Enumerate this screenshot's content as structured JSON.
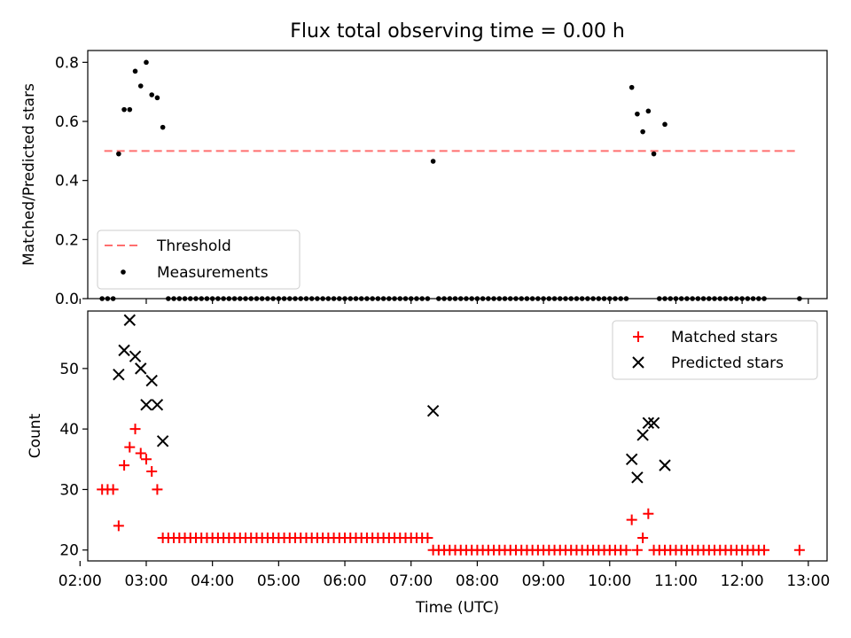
{
  "chart_data": [
    {
      "type": "scatter",
      "title": "Flux total observing time = 0.00 h",
      "ylabel": "Matched/Predicted stars",
      "xlabel": "",
      "ylim": [
        0,
        0.84
      ],
      "yticks": [
        "0.0",
        "0.2",
        "0.4",
        "0.6",
        "0.8"
      ],
      "threshold": {
        "name": "Threshold",
        "value": 0.5,
        "x_range": [
          "02:22",
          "12:48"
        ],
        "color": "#ff6f6f"
      },
      "legend": {
        "placement": "lower-left",
        "entries": [
          "Threshold",
          "Measurements"
        ]
      },
      "series": [
        {
          "name": "Measurements",
          "color": "#000000",
          "marker": "dot",
          "points": [
            [
              "02:20",
              0
            ],
            [
              "02:25",
              0
            ],
            [
              "02:30",
              0
            ],
            [
              "02:35",
              0.49
            ],
            [
              "02:40",
              0.64
            ],
            [
              "02:45",
              0.64
            ],
            [
              "02:50",
              0.77
            ],
            [
              "02:55",
              0.72
            ],
            [
              "03:00",
              0.8
            ],
            [
              "03:05",
              0.69
            ],
            [
              "03:10",
              0.68
            ],
            [
              "03:15",
              0.58
            ],
            [
              "07:20",
              0.465
            ],
            [
              "10:20",
              0.715
            ],
            [
              "10:25",
              0.625
            ],
            [
              "10:30",
              0.565
            ],
            [
              "10:35",
              0.635
            ],
            [
              "10:40",
              0.49
            ],
            [
              "10:50",
              0.59
            ],
            [
              "12:52",
              0
            ]
          ],
          "zero_runs": [
            {
              "start": "03:20",
              "end": "07:15",
              "step_min": 5
            },
            {
              "start": "07:25",
              "end": "10:15",
              "step_min": 5
            },
            {
              "start": "10:45",
              "end": "12:20",
              "step_min": 5
            }
          ]
        }
      ]
    },
    {
      "type": "scatter",
      "title": "",
      "ylabel": "Count",
      "xlabel": "Time (UTC)",
      "ylim": [
        18.2,
        59.5
      ],
      "yticks": [
        "20",
        "30",
        "40",
        "50"
      ],
      "xlim": [
        "02:07",
        "13:17"
      ],
      "xticks": [
        "02:00",
        "03:00",
        "04:00",
        "05:00",
        "06:00",
        "07:00",
        "08:00",
        "09:00",
        "10:00",
        "11:00",
        "12:00",
        "13:00"
      ],
      "legend": {
        "placement": "top-right",
        "entries": [
          "Matched stars",
          "Predicted stars"
        ]
      },
      "series": [
        {
          "name": "Matched stars",
          "color": "#ff0000",
          "marker": "plus",
          "points": [
            [
              "02:20",
              30
            ],
            [
              "02:25",
              30
            ],
            [
              "02:30",
              30
            ],
            [
              "02:35",
              24
            ],
            [
              "02:40",
              34
            ],
            [
              "02:45",
              37
            ],
            [
              "02:50",
              40
            ],
            [
              "02:55",
              36
            ],
            [
              "03:00",
              35
            ],
            [
              "03:05",
              33
            ],
            [
              "03:10",
              30
            ],
            [
              "10:20",
              25
            ],
            [
              "10:25",
              20
            ],
            [
              "10:30",
              22
            ],
            [
              "10:35",
              26
            ],
            [
              "10:40",
              20
            ],
            [
              "12:52",
              20
            ]
          ],
          "constant_runs": [
            {
              "start": "03:15",
              "end": "07:15",
              "step_min": 5,
              "value": 22
            },
            {
              "start": "07:20",
              "end": "10:15",
              "step_min": 5,
              "value": 20
            },
            {
              "start": "10:45",
              "end": "12:20",
              "step_min": 5,
              "value": 20
            }
          ]
        },
        {
          "name": "Predicted stars",
          "color": "#000000",
          "marker": "x",
          "points": [
            [
              "02:35",
              49
            ],
            [
              "02:40",
              53
            ],
            [
              "02:45",
              58
            ],
            [
              "02:50",
              52
            ],
            [
              "02:55",
              50
            ],
            [
              "03:00",
              44
            ],
            [
              "03:05",
              48
            ],
            [
              "03:10",
              44
            ],
            [
              "03:15",
              38
            ],
            [
              "07:20",
              43
            ],
            [
              "10:20",
              35
            ],
            [
              "10:25",
              32
            ],
            [
              "10:30",
              39
            ],
            [
              "10:35",
              41
            ],
            [
              "10:40",
              41
            ],
            [
              "10:50",
              34
            ]
          ]
        }
      ]
    }
  ]
}
